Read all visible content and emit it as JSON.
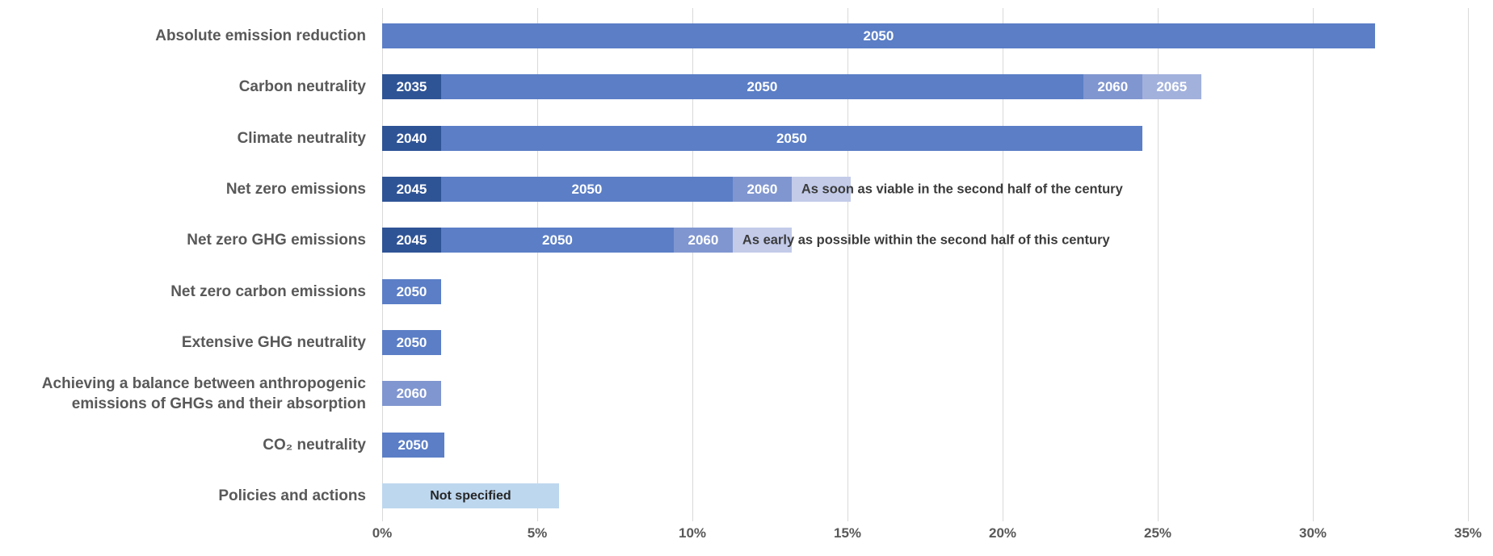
{
  "chart_data": {
    "type": "bar",
    "orientation": "horizontal",
    "title": "",
    "xlabel": "",
    "ylabel": "",
    "xlim": [
      0,
      35
    ],
    "x_unit": "%",
    "grid": "vertical",
    "legend": "none",
    "x_axis_ticks": [
      "0%",
      "5%",
      "10%",
      "15%",
      "20%",
      "25%",
      "30%",
      "35%"
    ],
    "colors": {
      "dark": "#2f5496",
      "medium": "#5b7ec6",
      "light": "#8096d0",
      "lighter": "#a2b1dc",
      "lightest": "#c3cbe9",
      "pale": "#bdd7ee",
      "gridline": "#d9d9d9",
      "category_text": "#595959",
      "annotation_text": "#3b3b3b"
    },
    "rows": [
      {
        "category_lines": [
          "Absolute emission reduction"
        ],
        "segments": [
          {
            "label": "2050",
            "value": 32.0,
            "color": "medium",
            "label_style": "inside-white"
          }
        ]
      },
      {
        "category_lines": [
          "Carbon neutrality"
        ],
        "segments": [
          {
            "label": "2035",
            "value": 1.9,
            "color": "dark",
            "label_style": "inside-white"
          },
          {
            "label": "2050",
            "value": 20.7,
            "color": "medium",
            "label_style": "inside-white"
          },
          {
            "label": "2060",
            "value": 1.9,
            "color": "light",
            "label_style": "inside-white"
          },
          {
            "label": "2065",
            "value": 1.9,
            "color": "lighter",
            "label_style": "inside-white"
          }
        ]
      },
      {
        "category_lines": [
          "Climate neutrality"
        ],
        "segments": [
          {
            "label": "2040",
            "value": 1.9,
            "color": "dark",
            "label_style": "inside-white"
          },
          {
            "label": "2050",
            "value": 22.6,
            "color": "medium",
            "label_style": "inside-white"
          }
        ]
      },
      {
        "category_lines": [
          "Net zero emissions"
        ],
        "segments": [
          {
            "label": "2045",
            "value": 1.9,
            "color": "dark",
            "label_style": "inside-white"
          },
          {
            "label": "2050",
            "value": 9.4,
            "color": "medium",
            "label_style": "inside-white"
          },
          {
            "label": "2060",
            "value": 1.9,
            "color": "light",
            "label_style": "inside-white"
          },
          {
            "label": "As soon as viable in the second half of the century",
            "value": 1.9,
            "color": "lightest",
            "label_style": "overflow-dark"
          }
        ]
      },
      {
        "category_lines": [
          "Net zero GHG emissions"
        ],
        "segments": [
          {
            "label": "2045",
            "value": 1.9,
            "color": "dark",
            "label_style": "inside-white"
          },
          {
            "label": "2050",
            "value": 7.5,
            "color": "medium",
            "label_style": "inside-white"
          },
          {
            "label": "2060",
            "value": 1.9,
            "color": "light",
            "label_style": "inside-white"
          },
          {
            "label": "As early as possible within the second half of this century",
            "value": 1.9,
            "color": "lightest",
            "label_style": "overflow-dark"
          }
        ]
      },
      {
        "category_lines": [
          "Net zero carbon emissions"
        ],
        "segments": [
          {
            "label": "2050",
            "value": 1.9,
            "color": "medium",
            "label_style": "inside-white"
          }
        ]
      },
      {
        "category_lines": [
          "Extensive GHG neutrality"
        ],
        "segments": [
          {
            "label": "2050",
            "value": 1.9,
            "color": "medium",
            "label_style": "inside-white"
          }
        ]
      },
      {
        "category_lines": [
          "Achieving a balance between anthropogenic",
          "emissions of GHGs and their absorption"
        ],
        "segments": [
          {
            "label": "2060",
            "value": 1.9,
            "color": "light",
            "label_style": "inside-white"
          }
        ]
      },
      {
        "category_lines": [
          "CO₂ neutrality"
        ],
        "segments": [
          {
            "label": "2050",
            "value": 2.0,
            "color": "medium",
            "label_style": "inside-white"
          }
        ]
      },
      {
        "category_lines": [
          "Policies and actions"
        ],
        "segments": [
          {
            "label": "Not specified",
            "value": 5.7,
            "color": "pale",
            "label_style": "inside-dark"
          }
        ]
      }
    ]
  }
}
